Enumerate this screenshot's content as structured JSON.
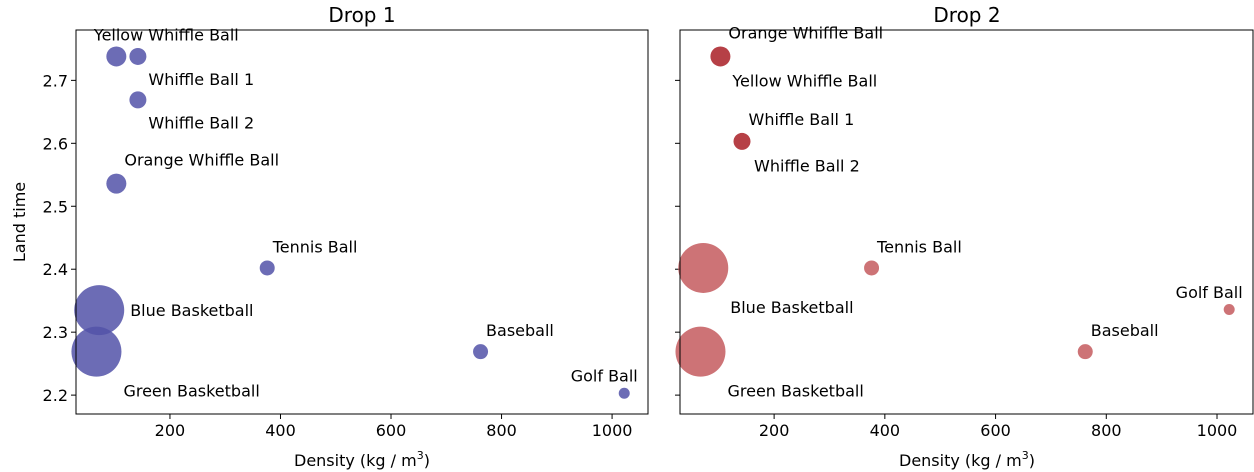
{
  "chart_data": [
    {
      "type": "scatter",
      "title": "Drop 1",
      "xlabel": "Density (kg / m",
      "xlabel_sup": "3",
      "xlabel_end": ")",
      "ylabel": "Land time",
      "xlim": [
        30,
        1065
      ],
      "ylim": [
        2.17,
        2.78
      ],
      "xticks": [
        200,
        400,
        600,
        800,
        1000
      ],
      "yticks": [
        2.2,
        2.3,
        2.4,
        2.5,
        2.6,
        2.7
      ],
      "ytick_labels_visible": true,
      "points": [
        {
          "label": "Yellow Whiffle Ball",
          "x": 103,
          "y": 2.738,
          "size": 10,
          "color": "#5252a8",
          "label_pos": "above"
        },
        {
          "label": "Whiffle Ball 1",
          "x": 142,
          "y": 2.738,
          "size": 8.5,
          "color": "#5252a8",
          "label_pos": "right-below"
        },
        {
          "label": "Whiffle Ball 2",
          "x": 142,
          "y": 2.669,
          "size": 8.5,
          "color": "#5252a8",
          "label_pos": "right-below"
        },
        {
          "label": "Orange Whiffle Ball",
          "x": 103,
          "y": 2.536,
          "size": 10,
          "color": "#5252a8",
          "label_pos": "right-above"
        },
        {
          "label": "Tennis Ball",
          "x": 376,
          "y": 2.402,
          "size": 7.5,
          "color": "#5252a8",
          "label_pos": "right-above"
        },
        {
          "label": "Blue Basketball",
          "x": 72,
          "y": 2.335,
          "size": 25,
          "color": "#5252a8",
          "label_pos": "right"
        },
        {
          "label": "Green Basketball",
          "x": 67,
          "y": 2.269,
          "size": 25,
          "color": "#5252a8",
          "label_pos": "right-below"
        },
        {
          "label": "Baseball",
          "x": 762,
          "y": 2.269,
          "size": 7.5,
          "color": "#5252a8",
          "label_pos": "right-above"
        },
        {
          "label": "Golf Ball",
          "x": 1022,
          "y": 2.203,
          "size": 5.5,
          "color": "#5252a8",
          "label_pos": "above-left"
        }
      ]
    },
    {
      "type": "scatter",
      "title": "Drop 2",
      "xlabel": "Density (kg / m",
      "xlabel_sup": "3",
      "xlabel_end": ")",
      "ylabel": "",
      "xlim": [
        30,
        1065
      ],
      "ylim": [
        2.17,
        2.78
      ],
      "xticks": [
        200,
        400,
        600,
        800,
        1000
      ],
      "yticks": [
        2.2,
        2.3,
        2.4,
        2.5,
        2.6,
        2.7
      ],
      "ytick_labels_visible": false,
      "points": [
        {
          "label": "Orange Whiffle Ball",
          "x": 103,
          "y": 2.738,
          "size": 10,
          "color": "#a91f26",
          "label_pos": "right-above"
        },
        {
          "label": "Yellow Whiffle Ball",
          "x": 103,
          "y": 2.738,
          "size": 0,
          "color": "#a91f26",
          "label_pos": "right-below"
        },
        {
          "label": "Whiffle Ball 1",
          "x": 142,
          "y": 2.603,
          "size": 8.5,
          "color": "#a91f26",
          "label_pos": "right-above"
        },
        {
          "label": "Whiffle Ball 2",
          "x": 142,
          "y": 2.603,
          "size": 0,
          "color": "#a91f26",
          "label_pos": "right-below"
        },
        {
          "label": "Tennis Ball",
          "x": 376,
          "y": 2.402,
          "size": 7.5,
          "color": "#c45b5e",
          "label_pos": "right-above"
        },
        {
          "label": "Blue Basketball",
          "x": 72,
          "y": 2.402,
          "size": 25,
          "color": "#c45b5e",
          "label_pos": "right-below"
        },
        {
          "label": "Golf Ball",
          "x": 1022,
          "y": 2.336,
          "size": 5.5,
          "color": "#c45b5e",
          "label_pos": "above-left"
        },
        {
          "label": "Green Basketball",
          "x": 67,
          "y": 2.269,
          "size": 25,
          "color": "#c45b5e",
          "label_pos": "right-below"
        },
        {
          "label": "Baseball",
          "x": 762,
          "y": 2.269,
          "size": 7.5,
          "color": "#c45b5e",
          "label_pos": "right-above"
        }
      ]
    }
  ]
}
